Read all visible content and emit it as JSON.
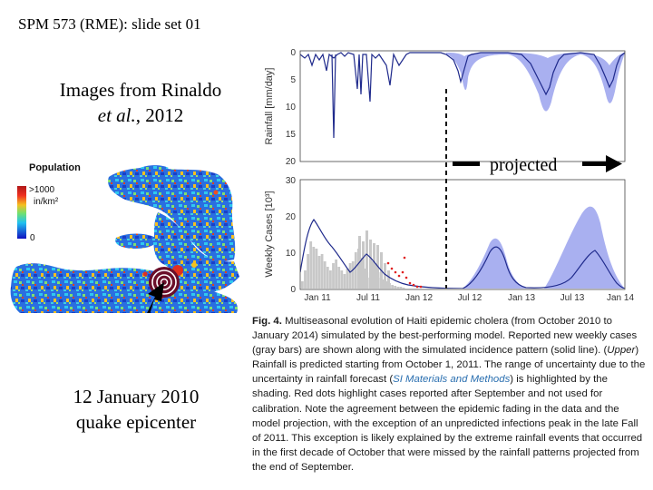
{
  "slide_header": "SPM 573 (RME): slide set 01",
  "source_note": {
    "line1": "Images from Rinaldo",
    "line2_italic": "et al.",
    "line2_rest": ", 2012"
  },
  "epicenter_label": {
    "line1": "12 January 2010",
    "line2": "quake epicenter"
  },
  "projected_label": "projected",
  "map": {
    "legend_title": "Population",
    "legend_top": ">1000",
    "legend_unit": "in/km²",
    "legend_bottom": "0"
  },
  "rainfall_panel": {
    "ylabel": "Rainfall [mm/day]",
    "yticks": [
      "0",
      "5",
      "10",
      "15",
      "20"
    ]
  },
  "cases_panel": {
    "ylabel": "Weekly Cases [10³]",
    "yticks": [
      "0",
      "10",
      "20",
      "30"
    ],
    "xticks": [
      "Jan 11",
      "Jul 11",
      "Jan 12",
      "Jul 12",
      "Jan 13",
      "Jul 13",
      "Jan 14"
    ]
  },
  "caption": {
    "label": "Fig. 4.",
    "part1": "Multiseasonal evolution of Haiti epidemic cholera (from October 2010 to January 2014) simulated by the best-performing model. Reported new weekly cases (gray bars) are shown along with the simulated incidence pattern (solid line). (",
    "upper_italic": "Upper",
    "part2": ") Rainfall is predicted starting from October 1, 2011. The range of uncertainty due to the uncertainty in rainfall forecast (",
    "link_text": "SI Materials and Methods",
    "part3": ") is highlighted by the shading. Red dots highlight cases reported after September and not used for calibration. Note the agreement between the epidemic fading in the data and the model projection, with the exception of an unpredicted infections peak in the late Fall of 2011. This exception is likely explained by the extreme rainfall events that occurred in the first decade of October that were missed by the rainfall patterns projected from the end of September."
  },
  "colors": {
    "model_line": "#1f2a8c",
    "uncertainty_band": "#a9b0f0",
    "reported_bars": "#c8c8c8",
    "red_dots": "#e02020",
    "epicenter_ring": "#6b0f2a"
  }
}
